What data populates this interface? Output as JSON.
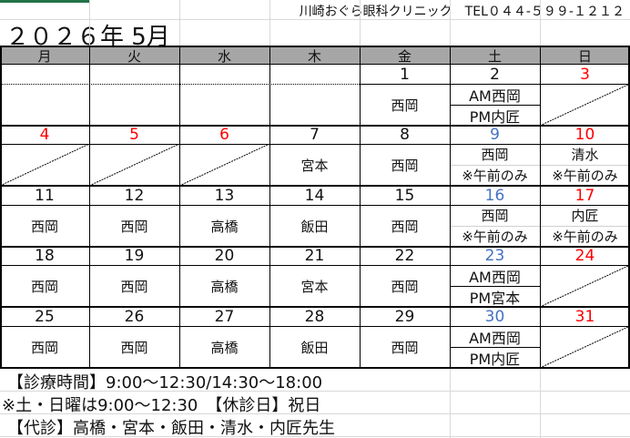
{
  "header": {
    "clinic": "川崎おぐら眼科クリニック　TEL０４４-５９９-１２１２",
    "title": "２０２６年 5月"
  },
  "weekdays": [
    "月",
    "火",
    "水",
    "木",
    "金",
    "土",
    "日"
  ],
  "colors": {
    "header_bg": "#a6a6a6",
    "holiday": "#ff0000",
    "saturday": "#4472c4",
    "accent": "#217346"
  },
  "weeks": [
    [
      {},
      {},
      {},
      {},
      {
        "date": "1",
        "staff": "西岡"
      },
      {
        "date": "2",
        "am": "AM西岡",
        "pm": "PM内匠",
        "line": true
      },
      {
        "date": "3",
        "color": "holiday",
        "closed": true
      }
    ],
    [
      {
        "date": "4",
        "color": "holiday",
        "closed": true
      },
      {
        "date": "5",
        "color": "holiday",
        "closed": true
      },
      {
        "date": "6",
        "color": "holiday",
        "closed": true
      },
      {
        "date": "7",
        "staff": "宮本"
      },
      {
        "date": "8",
        "staff": "西岡"
      },
      {
        "date": "9",
        "color": "saturday",
        "am": "西岡",
        "pm": "※午前のみ"
      },
      {
        "date": "10",
        "color": "holiday",
        "am": "清水",
        "pm": "※午前のみ"
      }
    ],
    [
      {
        "date": "11",
        "staff": "西岡"
      },
      {
        "date": "12",
        "staff": "西岡"
      },
      {
        "date": "13",
        "staff": "高橋"
      },
      {
        "date": "14",
        "staff": "飯田"
      },
      {
        "date": "15",
        "staff": "西岡"
      },
      {
        "date": "16",
        "color": "saturday",
        "am": "西岡",
        "pm": "※午前のみ"
      },
      {
        "date": "17",
        "color": "holiday",
        "am": "内匠",
        "pm": "※午前のみ"
      }
    ],
    [
      {
        "date": "18",
        "staff": "西岡"
      },
      {
        "date": "19",
        "staff": "西岡"
      },
      {
        "date": "20",
        "staff": "高橋"
      },
      {
        "date": "21",
        "staff": "宮本"
      },
      {
        "date": "22",
        "staff": "西岡"
      },
      {
        "date": "23",
        "color": "saturday",
        "am": "AM西岡",
        "pm": "PM宮本",
        "line": true
      },
      {
        "date": "24",
        "color": "holiday",
        "closed": true
      }
    ],
    [
      {
        "date": "25",
        "staff": "西岡"
      },
      {
        "date": "26",
        "staff": "西岡"
      },
      {
        "date": "27",
        "staff": "高橋"
      },
      {
        "date": "28",
        "staff": "飯田"
      },
      {
        "date": "29",
        "staff": "西岡"
      },
      {
        "date": "30",
        "color": "saturday",
        "am": "AM西岡",
        "pm": "PM内匠",
        "line": true
      },
      {
        "date": "31",
        "color": "holiday",
        "closed": true
      }
    ]
  ],
  "footer": {
    "hours": "【診療時間】9:00～12:30/14:30～18:00",
    "weekend": "※土・日曜は9:00～12:30　【休診日】祝日",
    "substitute": "【代診】高橋・宮本・飯田・清水・内匠先生"
  }
}
